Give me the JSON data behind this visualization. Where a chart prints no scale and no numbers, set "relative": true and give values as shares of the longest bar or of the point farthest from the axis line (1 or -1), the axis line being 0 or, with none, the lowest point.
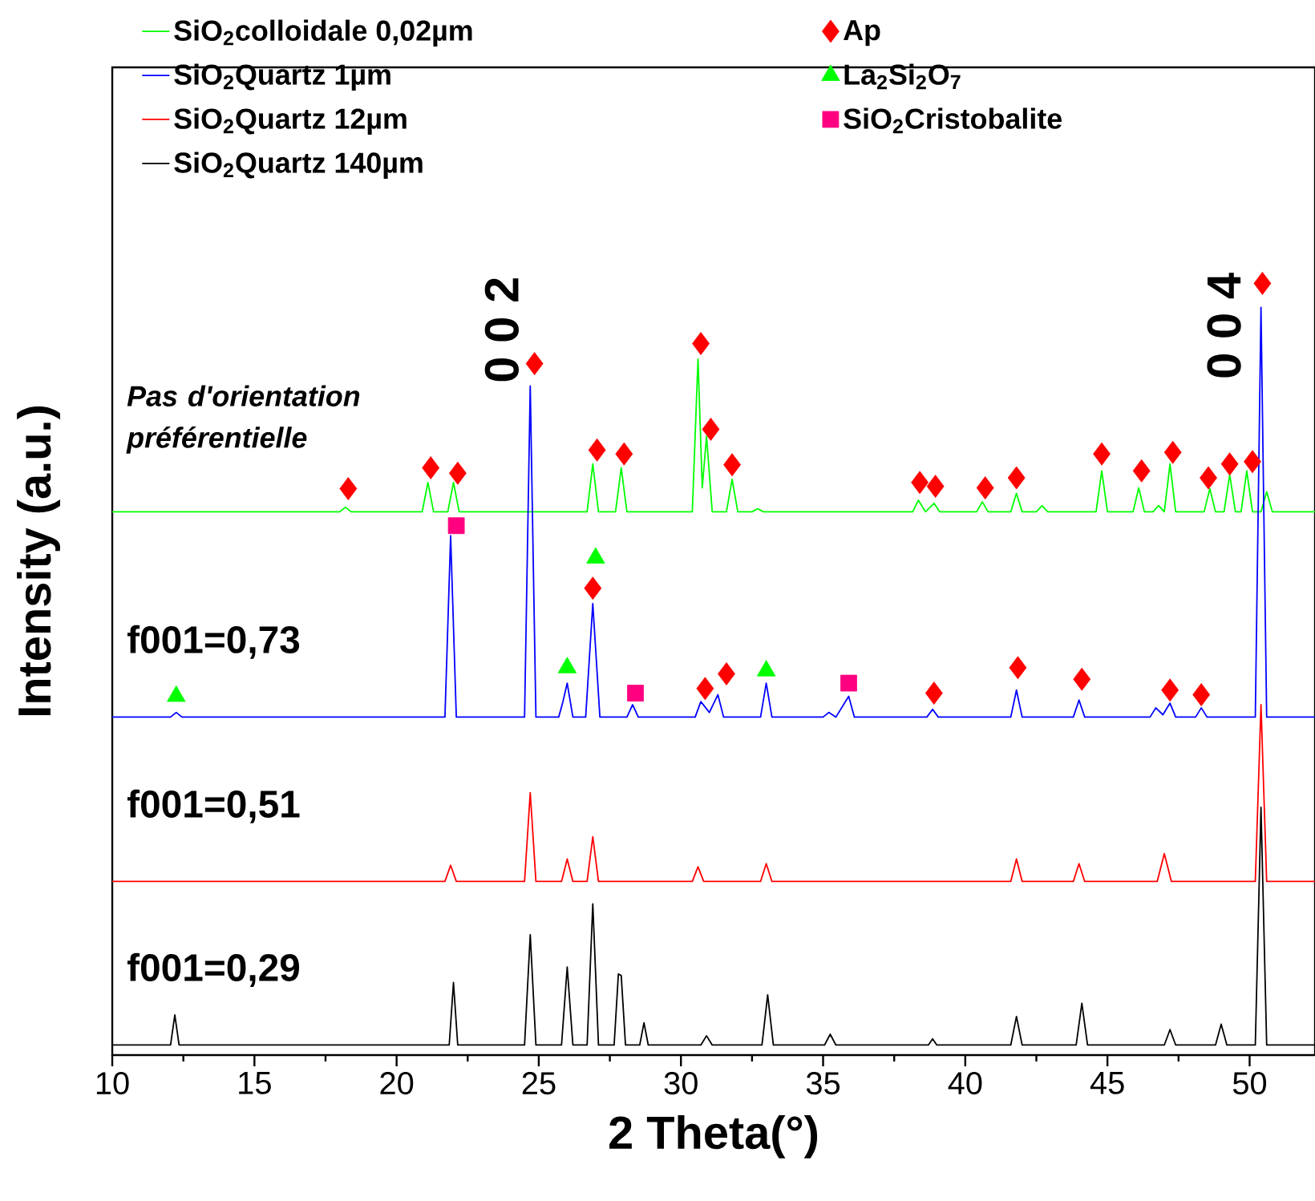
{
  "chart_data": {
    "type": "line",
    "relative": true,
    "xlabel": "2 Theta(°)",
    "ylabel": "Intensity (a.u.)",
    "xlim": [
      10,
      52.3
    ],
    "xticks": [
      10,
      15,
      20,
      25,
      30,
      35,
      40,
      45,
      50
    ],
    "legend": "top left",
    "annotations": [
      "*Pas d'orientation préférentielle*",
      "f001=0,73",
      "f001=0,51",
      "f001=0,29",
      "0 0 2",
      "0 0 4"
    ],
    "series": [
      {
        "name": "SiO$_{2}$colloidale 0,02µm",
        "color": "#00ff00",
        "x": [
          10,
          18.0,
          18.2,
          18.4,
          20.9,
          21.1,
          21.3,
          21.8,
          22.0,
          22.2,
          26.7,
          26.9,
          27.1,
          27.7,
          27.9,
          28.1,
          30.4,
          30.6,
          30.75,
          30.9,
          31.1,
          31.6,
          31.8,
          32.0,
          32.5,
          32.7,
          32.9,
          38.15,
          38.35,
          38.6,
          38.9,
          39.1,
          40.4,
          40.6,
          40.8,
          41.6,
          41.8,
          42.0,
          42.5,
          42.7,
          42.9,
          44.6,
          44.8,
          45.0,
          45.9,
          46.1,
          46.3,
          46.6,
          46.8,
          47.0,
          47.2,
          47.4,
          48.4,
          48.6,
          48.8,
          49.1,
          49.3,
          49.5,
          49.7,
          49.9,
          50.1,
          50.4,
          50.6,
          50.8,
          52.3
        ],
        "values": [
          0.704,
          0.704,
          0.71,
          0.704,
          0.704,
          0.742,
          0.704,
          0.704,
          0.742,
          0.704,
          0.704,
          0.766,
          0.704,
          0.704,
          0.761,
          0.704,
          0.704,
          0.902,
          0.735,
          0.802,
          0.704,
          0.704,
          0.746,
          0.704,
          0.704,
          0.708,
          0.704,
          0.704,
          0.719,
          0.704,
          0.715,
          0.704,
          0.704,
          0.717,
          0.704,
          0.704,
          0.728,
          0.704,
          0.704,
          0.712,
          0.704,
          0.704,
          0.757,
          0.704,
          0.704,
          0.735,
          0.704,
          0.704,
          0.712,
          0.704,
          0.766,
          0.704,
          0.704,
          0.734,
          0.704,
          0.704,
          0.752,
          0.704,
          0.704,
          0.757,
          0.704,
          0.704,
          0.73,
          0.704,
          0.704
        ]
      },
      {
        "name": "SiO$_{2}$Quartz 1µm",
        "color": "#0000ff",
        "x": [
          10,
          12.05,
          12.25,
          12.45,
          21.7,
          21.9,
          22.1,
          24.5,
          24.7,
          24.9,
          25.7,
          25.85,
          26.0,
          26.2,
          26.65,
          26.9,
          27.15,
          28.1,
          28.3,
          28.5,
          30.5,
          30.7,
          31.0,
          31.3,
          31.5,
          32.8,
          33.0,
          33.2,
          35.0,
          35.2,
          35.45,
          35.9,
          36.1,
          38.65,
          38.85,
          39.05,
          41.6,
          41.8,
          42.0,
          43.8,
          44.0,
          44.2,
          46.5,
          46.7,
          46.95,
          47.2,
          47.4,
          48.1,
          48.3,
          48.5,
          50.2,
          50.4,
          50.6,
          52.3
        ],
        "values": [
          0.438,
          0.438,
          0.444,
          0.438,
          0.438,
          0.673,
          0.438,
          0.438,
          0.867,
          0.438,
          0.438,
          0.458,
          0.482,
          0.438,
          0.438,
          0.585,
          0.438,
          0.438,
          0.454,
          0.438,
          0.438,
          0.458,
          0.444,
          0.467,
          0.438,
          0.438,
          0.482,
          0.438,
          0.438,
          0.444,
          0.438,
          0.465,
          0.438,
          0.438,
          0.448,
          0.438,
          0.438,
          0.473,
          0.438,
          0.438,
          0.46,
          0.438,
          0.438,
          0.45,
          0.441,
          0.456,
          0.438,
          0.438,
          0.45,
          0.438,
          0.438,
          0.969,
          0.438,
          0.438
        ]
      },
      {
        "name": "SiO$_{2}$Quartz 12µm",
        "color": "#ff0000",
        "x": [
          10,
          21.7,
          21.9,
          22.1,
          24.5,
          24.7,
          24.9,
          25.8,
          26.0,
          26.2,
          26.7,
          26.9,
          27.1,
          30.4,
          30.6,
          30.8,
          32.8,
          33.0,
          33.2,
          41.6,
          41.8,
          42.0,
          43.8,
          44.0,
          44.2,
          46.75,
          47.0,
          47.25,
          50.2,
          50.4,
          50.6,
          52.3
        ],
        "values": [
          0.225,
          0.225,
          0.246,
          0.225,
          0.225,
          0.34,
          0.225,
          0.225,
          0.254,
          0.225,
          0.225,
          0.283,
          0.225,
          0.225,
          0.244,
          0.225,
          0.225,
          0.248,
          0.225,
          0.225,
          0.254,
          0.225,
          0.225,
          0.248,
          0.225,
          0.225,
          0.261,
          0.225,
          0.225,
          0.454,
          0.225,
          0.225
        ]
      },
      {
        "name": "SiO$_{2}$Quartz 140µm",
        "color": "#000000",
        "x": [
          10,
          12.05,
          12.2,
          12.35,
          21.85,
          22.0,
          22.15,
          24.5,
          24.7,
          24.9,
          25.8,
          26.0,
          26.2,
          26.7,
          26.9,
          27.1,
          27.65,
          27.8,
          27.9,
          28.05,
          28.55,
          28.7,
          28.85,
          30.7,
          30.9,
          31.1,
          32.85,
          33.05,
          33.25,
          35.05,
          35.25,
          35.45,
          38.7,
          38.85,
          39.0,
          41.6,
          41.8,
          42.0,
          43.9,
          44.1,
          44.3,
          47.0,
          47.2,
          47.4,
          48.8,
          49.0,
          49.2,
          50.2,
          50.4,
          50.6,
          52.3
        ],
        "values": [
          0.013,
          0.013,
          0.052,
          0.013,
          0.013,
          0.094,
          0.013,
          0.013,
          0.156,
          0.013,
          0.013,
          0.114,
          0.013,
          0.013,
          0.196,
          0.013,
          0.013,
          0.105,
          0.103,
          0.013,
          0.013,
          0.042,
          0.013,
          0.013,
          0.025,
          0.013,
          0.013,
          0.078,
          0.013,
          0.013,
          0.027,
          0.013,
          0.013,
          0.021,
          0.013,
          0.013,
          0.05,
          0.013,
          0.013,
          0.067,
          0.013,
          0.013,
          0.033,
          0.013,
          0.013,
          0.04,
          0.013,
          0.013,
          0.321,
          0.013,
          0.013
        ]
      },
      {
        "name": "Ap",
        "color": "#ff0000",
        "type": "scatter",
        "marker": "diamond",
        "x": [
          18.3,
          21.2,
          22.15,
          24.85,
          27.05,
          28.0,
          30.7,
          31.05,
          31.8,
          26.9,
          30.85,
          31.6,
          38.4,
          38.95,
          40.7,
          41.8,
          44.8,
          46.2,
          47.3,
          48.55,
          49.3,
          50.1,
          50.45,
          38.9,
          41.85,
          44.1,
          47.2,
          48.3
        ],
        "values": [
          0.734,
          0.761,
          0.754,
          0.896,
          0.784,
          0.779,
          0.922,
          0.811,
          0.765,
          0.605,
          0.475,
          0.494,
          0.742,
          0.737,
          0.735,
          0.748,
          0.779,
          0.757,
          0.781,
          0.748,
          0.766,
          0.769,
          1,
          0.469,
          0.502,
          0.487,
          0.473,
          0.467
        ]
      },
      {
        "name": "La$_{2}$Si$_{2}$O$_{7}$",
        "color": "#00ff00",
        "type": "scatter",
        "marker": "triangle",
        "x": [
          12.25,
          26.0,
          27.0,
          33.0
        ],
        "values": [
          0.465,
          0.502,
          0.644,
          0.498
        ]
      },
      {
        "name": "SiO$_{2}$Cristobalite",
        "color": "#ff0080",
        "type": "scatter",
        "marker": "square",
        "x": [
          22.1,
          28.4,
          35.9
        ],
        "values": [
          0.686,
          0.469,
          0.482
        ]
      }
    ]
  }
}
